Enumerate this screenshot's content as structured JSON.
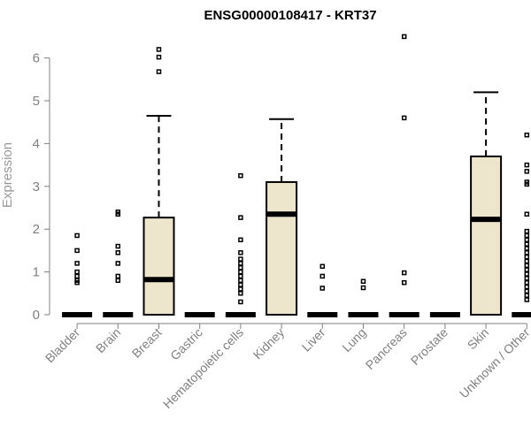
{
  "chart_data": {
    "type": "box",
    "title": "ENSG00000108417 - KRT37",
    "ylabel": "Expression",
    "xlabel": "",
    "ylim": [
      0,
      6.6
    ],
    "yticks": [
      0,
      1,
      2,
      3,
      4,
      5,
      6
    ],
    "colors": {
      "box_fill": "#ede6cc",
      "axis": "#808080",
      "stroke": "#000000"
    },
    "categories": [
      "Bladder",
      "Brain",
      "Breast",
      "Gastric",
      "Hematopoietic cells",
      "Kidney",
      "Liver",
      "Lung",
      "Pancreas",
      "Prostate",
      "Skin",
      "Unknown / Other"
    ],
    "boxes": [
      {
        "category": "Bladder",
        "q1": 0,
        "median": 0,
        "q3": 0,
        "whisker_low": 0,
        "whisker_high": 0,
        "outliers": [
          0.75,
          0.8,
          0.9,
          1.0,
          1.2,
          1.5,
          1.85
        ]
      },
      {
        "category": "Brain",
        "q1": 0,
        "median": 0,
        "q3": 0,
        "whisker_low": 0,
        "whisker_high": 0,
        "outliers": [
          0.8,
          0.9,
          1.2,
          1.45,
          1.6,
          2.35,
          2.4
        ]
      },
      {
        "category": "Breast",
        "q1": 0,
        "median": 0.82,
        "q3": 2.27,
        "whisker_low": 0,
        "whisker_high": 4.65,
        "outliers": [
          5.68,
          6.02,
          6.2
        ]
      },
      {
        "category": "Gastric",
        "q1": 0,
        "median": 0,
        "q3": 0,
        "whisker_low": 0,
        "whisker_high": 0,
        "outliers": []
      },
      {
        "category": "Hematopoietic cells",
        "q1": 0,
        "median": 0,
        "q3": 0,
        "whisker_low": 0,
        "whisker_high": 0,
        "outliers": [
          0.3,
          0.5,
          0.6,
          0.7,
          0.8,
          0.9,
          1.0,
          1.1,
          1.2,
          1.3,
          1.45,
          1.75,
          2.27,
          3.25
        ]
      },
      {
        "category": "Kidney",
        "q1": 0,
        "median": 2.35,
        "q3": 3.1,
        "whisker_low": 0,
        "whisker_high": 4.57,
        "outliers": []
      },
      {
        "category": "Liver",
        "q1": 0,
        "median": 0,
        "q3": 0,
        "whisker_low": 0,
        "whisker_high": 0,
        "outliers": [
          0.62,
          0.9,
          1.13
        ]
      },
      {
        "category": "Lung",
        "q1": 0,
        "median": 0,
        "q3": 0,
        "whisker_low": 0,
        "whisker_high": 0,
        "outliers": [
          0.63,
          0.78
        ]
      },
      {
        "category": "Pancreas",
        "q1": 0,
        "median": 0,
        "q3": 0,
        "whisker_low": 0,
        "whisker_high": 0,
        "outliers": [
          0.75,
          0.98,
          4.6,
          6.5
        ]
      },
      {
        "category": "Prostate",
        "q1": 0,
        "median": 0,
        "q3": 0,
        "whisker_low": 0,
        "whisker_high": 0,
        "outliers": []
      },
      {
        "category": "Skin",
        "q1": 0,
        "median": 2.23,
        "q3": 3.7,
        "whisker_low": 0,
        "whisker_high": 5.2,
        "outliers": []
      },
      {
        "category": "Unknown / Other",
        "q1": 0,
        "median": 0,
        "q3": 0,
        "whisker_low": 0,
        "whisker_high": 0,
        "outliers": [
          0.35,
          0.45,
          0.55,
          0.65,
          0.75,
          0.85,
          0.95,
          1.05,
          1.15,
          1.25,
          1.35,
          1.45,
          1.55,
          1.65,
          1.75,
          1.85,
          1.95,
          2.35,
          3.05,
          3.1,
          3.35,
          3.5,
          4.2
        ]
      }
    ]
  }
}
